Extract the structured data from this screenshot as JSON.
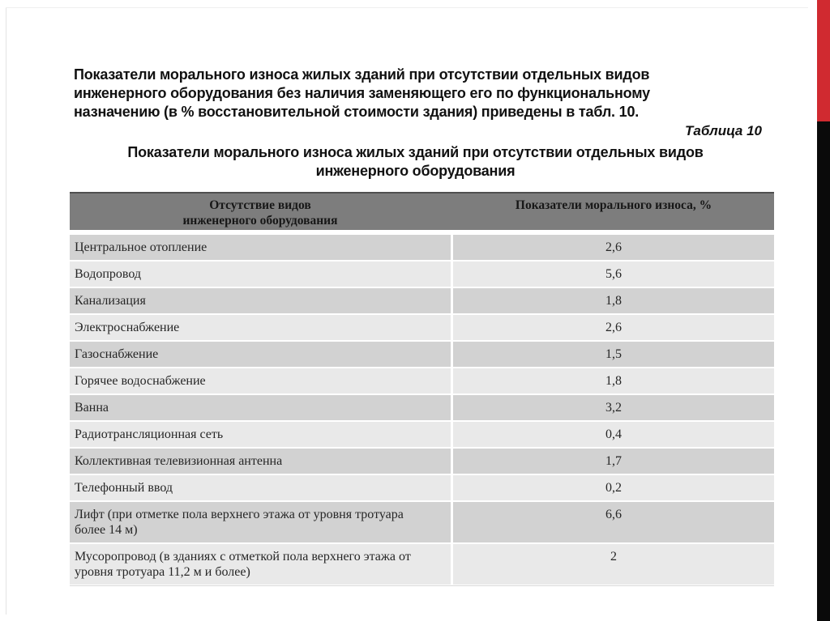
{
  "slide": {
    "intro_lines": [
      "Показатели морального износа жилых зданий при отсутствии отдельных видов",
      "инженерного оборудования без наличия заменяющего его по функциональному",
      "назначению (в % восстановительной стоимости здания) приведены в табл. 10."
    ],
    "table_caption": "Таблица 10",
    "table_title_lines": [
      "Показатели морального износа жилых зданий при отсутствии отдельных видов",
      "инженерного оборудования"
    ]
  },
  "table": {
    "columns": [
      {
        "label": "Отсутствие видов инженерного оборудования",
        "lines": [
          "Отсутствие видов",
          "инженерного оборудования"
        ]
      },
      {
        "label": "Показатели морального износа, %"
      }
    ],
    "rows": [
      {
        "label": "Центральное отопление",
        "value": "2,6"
      },
      {
        "label": "Водопровод",
        "value": "5,6"
      },
      {
        "label": "Канализация",
        "value": "1,8"
      },
      {
        "label": "Электроснабжение",
        "value": "2,6"
      },
      {
        "label": "Газоснабжение",
        "value": "1,5"
      },
      {
        "label": "Горячее водоснабжение",
        "value": "1,8"
      },
      {
        "label": "Ванна",
        "value": "3,2"
      },
      {
        "label": "Радиотрансляционная сеть",
        "value": "0,4"
      },
      {
        "label": "Коллективная телевизионная антенна",
        "value": "1,7"
      },
      {
        "label": "Телефонный ввод",
        "value": "0,2"
      },
      {
        "label": "Лифт (при отметке пола верхнего этажа от уровня тротуара более 14 м)",
        "value": "6,6"
      },
      {
        "label": "Мусоропровод (в зданиях с отметкой пола верхнего этажа от уровня тротуара 11,2 м и более)",
        "value": "2"
      }
    ]
  },
  "colors": {
    "accent_red": "#d02a30",
    "accent_black": "#0a0a0a",
    "header_gray": "#7d7d7d",
    "row_dark": "#d2d2d2",
    "row_light": "#e9e9e9"
  }
}
